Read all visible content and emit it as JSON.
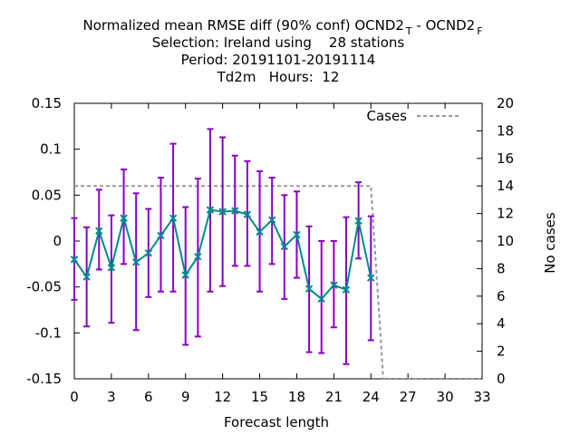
{
  "chart_data": {
    "type": "line",
    "title": {
      "line1_main": "Normalized mean RMSE diff (90% conf) OCND2",
      "line1_sub1": "T",
      "line1_sep": " - OCND2",
      "line1_sub2": "F",
      "line2": "Selection: Ireland using    28 stations",
      "line3": "Period: 20191101-20191114",
      "line4": "Td2m   Hours:  12"
    },
    "xlabel": "Forecast length",
    "ylabel": "",
    "y2label": "No cases",
    "xlim": [
      0,
      33
    ],
    "ylim": [
      -0.15,
      0.15
    ],
    "y2lim": [
      0,
      20
    ],
    "x_ticks": [
      "0",
      "3",
      "6",
      "9",
      "12",
      "15",
      "18",
      "21",
      "24",
      "27",
      "30",
      "33"
    ],
    "y_ticks": [
      "-0.15",
      "-0.1",
      "-0.05",
      "0",
      "0.05",
      "0.1",
      "0.15"
    ],
    "y2_ticks": [
      "0",
      "2",
      "4",
      "6",
      "8",
      "10",
      "12",
      "14",
      "16",
      "18",
      "20"
    ],
    "legend": {
      "position": "top-right",
      "cases_label": "Cases"
    },
    "grid": false,
    "colors": {
      "main": "#008b8b",
      "errorbar": "#8a00c8",
      "cases": "#999999"
    },
    "series": [
      {
        "x": [
          0,
          1,
          2,
          3,
          4,
          5,
          6,
          7,
          8,
          9,
          10,
          11,
          12,
          13,
          14,
          15,
          16,
          17,
          18,
          19,
          20,
          21,
          22,
          23,
          24
        ],
        "values": [
          -0.02,
          -0.039,
          0.011,
          -0.029,
          0.025,
          -0.023,
          -0.013,
          0.006,
          0.025,
          -0.037,
          -0.017,
          0.034,
          0.032,
          0.033,
          0.029,
          0.01,
          0.023,
          -0.006,
          0.007,
          -0.052,
          -0.063,
          -0.048,
          -0.053,
          0.022,
          -0.04
        ],
        "err_low": [
          -0.064,
          -0.093,
          -0.031,
          -0.089,
          -0.025,
          -0.097,
          -0.061,
          -0.055,
          -0.055,
          -0.113,
          -0.104,
          -0.055,
          -0.049,
          -0.027,
          -0.027,
          -0.055,
          -0.025,
          -0.063,
          -0.04,
          -0.121,
          -0.122,
          -0.094,
          -0.134,
          -0.019,
          -0.108
        ],
        "err_high": [
          0.025,
          0.015,
          0.056,
          0.028,
          0.078,
          0.052,
          0.035,
          0.069,
          0.106,
          0.037,
          0.068,
          0.122,
          0.113,
          0.093,
          0.087,
          0.076,
          0.069,
          0.05,
          0.054,
          0.016,
          0,
          0,
          0.026,
          0.064,
          0.027
        ]
      },
      {
        "axis": "y2",
        "x": [
          0,
          24,
          25,
          33
        ],
        "values": [
          14,
          14,
          0,
          0
        ]
      }
    ]
  }
}
